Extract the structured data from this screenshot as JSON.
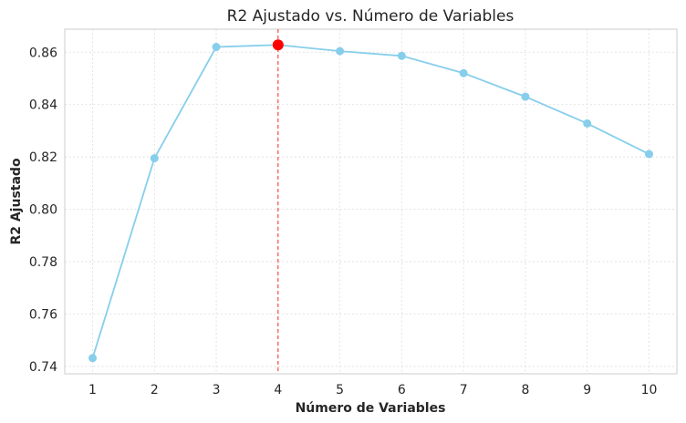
{
  "chart_data": {
    "type": "line",
    "title": "R2 Ajustado vs. Número de Variables",
    "xlabel": "Número de Variables",
    "ylabel": "R2 Ajustado",
    "x": [
      1,
      2,
      3,
      4,
      5,
      6,
      7,
      8,
      9,
      10
    ],
    "x_tick_labels": [
      "1",
      "2",
      "3",
      "4",
      "5",
      "6",
      "7",
      "8",
      "9",
      "10"
    ],
    "series": [
      {
        "values": [
          0.7432,
          0.8195,
          0.862,
          0.8628,
          0.8604,
          0.8586,
          0.852,
          0.843,
          0.8328,
          0.8211
        ],
        "color": "#87CEEB"
      }
    ],
    "highlight": {
      "x": 4,
      "y": 0.8628,
      "color": "#FF0000"
    },
    "vline": {
      "x": 4,
      "color": "#FF0000",
      "style": "dashed"
    },
    "ylim": [
      0.7372,
      0.8688
    ],
    "xlim": [
      0.55,
      10.45
    ],
    "y_ticks": [
      0.74,
      0.76,
      0.78,
      0.8,
      0.82,
      0.84,
      0.86
    ],
    "y_tick_labels": [
      "0.74",
      "0.76",
      "0.78",
      "0.80",
      "0.82",
      "0.84",
      "0.86"
    ],
    "grid": true
  }
}
